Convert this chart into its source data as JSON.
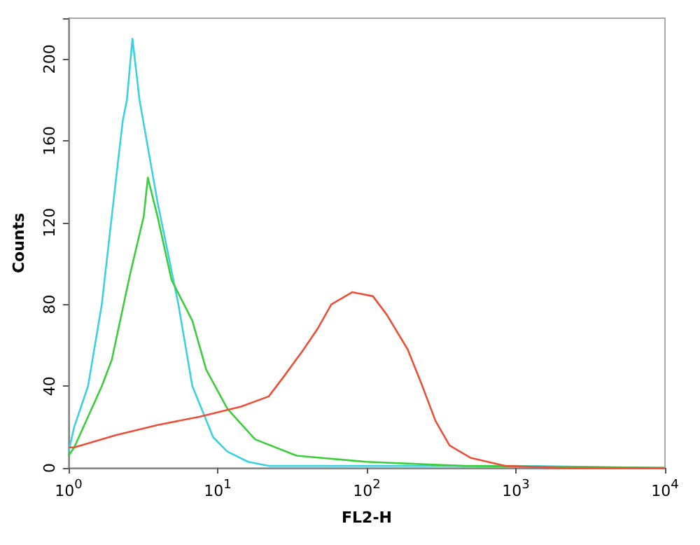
{
  "chart_data": {
    "type": "line",
    "xlabel": "FL2-H",
    "ylabel": "Counts",
    "log": "x",
    "xlim": [
      1,
      10000
    ],
    "ylim": [
      0,
      220
    ],
    "xticks": [
      {
        "value": 1,
        "label": "10$^{0}$"
      },
      {
        "value": 10,
        "label": "10$^{1}$"
      },
      {
        "value": 100,
        "label": "10$^{2}$"
      },
      {
        "value": 1000,
        "label": "10$^{3}$"
      },
      {
        "value": 10000,
        "label": "10$^{4}$"
      }
    ],
    "yticks": [
      0,
      40,
      80,
      120,
      160,
      200
    ],
    "grid": false,
    "marker": "none",
    "line_style": "solid",
    "series": [
      {
        "color": "#3cd0e0",
        "x": [
          1,
          1.09,
          1.35,
          1.67,
          2.07,
          2.31,
          2.46,
          2.68,
          2.99,
          3.95,
          5.45,
          6.76,
          9.33,
          11.6,
          16,
          22,
          46.7,
          100,
          1000,
          10000
        ],
        "values": [
          8,
          20,
          40,
          80,
          140,
          170,
          180,
          210,
          180,
          130,
          80,
          40,
          15,
          8,
          3,
          1,
          1,
          1,
          1,
          0
        ]
      },
      {
        "color": "#3ccc3c",
        "x": [
          1,
          1.09,
          1.35,
          1.67,
          1.95,
          2.57,
          3.19,
          3.4,
          3.95,
          4.9,
          6.76,
          8.38,
          11.6,
          17.8,
          33.8,
          98.9,
          445,
          10000
        ],
        "values": [
          6,
          10,
          25,
          40,
          53,
          94,
          123,
          142,
          123,
          92,
          72,
          48,
          29,
          14,
          6,
          3,
          1,
          0
        ]
      },
      {
        "color": "#e8503a",
        "x": [
          1,
          1.09,
          2.07,
          3.95,
          7.52,
          14.3,
          22,
          27.3,
          37.7,
          46.7,
          57.8,
          79.8,
          110,
          136,
          188,
          233,
          289,
          359,
          495,
          847,
          2000,
          10000
        ],
        "values": [
          10,
          10,
          16,
          21,
          25,
          30,
          35,
          44,
          58,
          68,
          80,
          86,
          84,
          75,
          58,
          41,
          23,
          11,
          5,
          1,
          0,
          0
        ]
      }
    ]
  }
}
